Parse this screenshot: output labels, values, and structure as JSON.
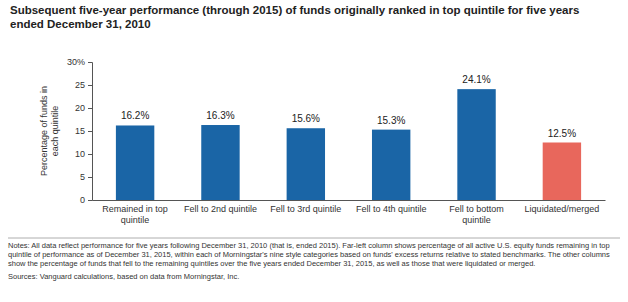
{
  "chart_data": {
    "type": "bar",
    "title": "Subsequent five-year performance (through 2015) of funds originally ranked in top quintile for five years ended December 31, 2010",
    "y_label": "Percentage of funds in each quintile",
    "categories": [
      "Remained in top quintile",
      "Fell to 2nd quintile",
      "Fell to 3rd quintile",
      "Fell to 4th quintile",
      "Fell to bottom quintile",
      "Liquidated/merged"
    ],
    "values": [
      16.2,
      16.3,
      15.6,
      15.3,
      24.1,
      12.5
    ],
    "value_labels": [
      "16.2%",
      "16.3%",
      "15.6%",
      "15.3%",
      "24.1%",
      "12.5%"
    ],
    "colors": [
      "#1a65a6",
      "#1a65a6",
      "#1a65a6",
      "#1a65a6",
      "#1a65a6",
      "#e8675c"
    ],
    "data_labels": true,
    "grid": false,
    "ylim": [
      0,
      30
    ],
    "yticks": [
      0,
      5,
      10,
      15,
      20,
      25,
      {
        "value": 30,
        "label": "30%"
      }
    ],
    "notes": "Notes: All data reflect performance for five years following December 31, 2010 (that is, ended 2015). Far-left column shows percentage of all active U.S. equity funds remaining in top quintile of performance as of December 31, 2015, within each of Morningstar's nine style categories based on funds' excess returns relative to stated benchmarks. The other columns show the percentage of funds that fell to the remaining quintiles over the five years ended December 31, 2015, as well as those that were liquidated or merged.",
    "sources": "Sources: Vanguard calculations, based on data from Morningstar, Inc."
  }
}
